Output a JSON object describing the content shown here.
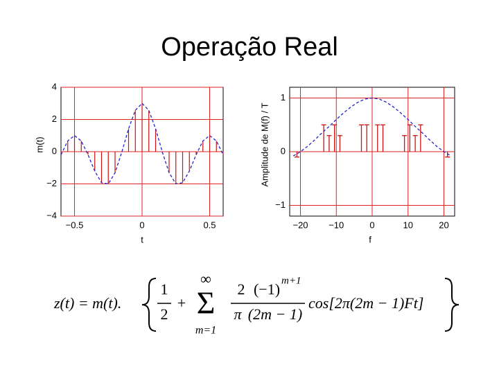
{
  "title": "Operação Real",
  "chart_data": [
    {
      "type": "line",
      "ylabel": "m(t)",
      "xlabel": "t",
      "xlim": [
        -0.6,
        0.6
      ],
      "ylim": [
        -4,
        4
      ],
      "xticks": [
        {
          "value": -0.5,
          "label": "−0.5"
        },
        0,
        0.5
      ],
      "yticks": [
        {
          "value": -4,
          "label": "−4"
        },
        {
          "value": -2,
          "label": "−2"
        },
        0,
        2,
        4
      ],
      "grid": true,
      "grid_color": "#dd2222",
      "line": {
        "color": "#2222cc",
        "dashed": true,
        "x": [
          -0.6,
          -0.55,
          -0.5,
          -0.45,
          -0.4,
          -0.35,
          -0.3,
          -0.25,
          -0.2,
          -0.15,
          -0.1,
          -0.05,
          0,
          0.05,
          0.1,
          0.15,
          0.2,
          0.25,
          0.3,
          0.35,
          0.4,
          0.45,
          0.5,
          0.55,
          0.6
        ],
        "values": [
          -0.191,
          0.667,
          1,
          0.667,
          -0.191,
          -1.206,
          -1.927,
          -2,
          -1.309,
          -0.03,
          1.427,
          2.569,
          3,
          2.569,
          1.427,
          -0.03,
          -1.309,
          -2,
          -1.927,
          -1.206,
          -0.191,
          0.667,
          1,
          0.667,
          -0.191
        ]
      },
      "samples": true,
      "sample_color": "#cc1111"
    },
    {
      "type": "line",
      "ylabel": "Amplitude de M(f) / T",
      "xlabel": "f",
      "xlim": [
        -23,
        23
      ],
      "ylim": [
        -1.2,
        1.2
      ],
      "xticks": [
        {
          "value": -20,
          "label": "−20"
        },
        {
          "value": -10,
          "label": "−10"
        },
        0,
        10,
        20
      ],
      "yticks": [
        {
          "value": -1,
          "label": "−1"
        },
        0,
        1
      ],
      "grid": true,
      "grid_color": "#dd2222",
      "line": {
        "color": "#2222cc",
        "dashed": true,
        "x": [
          -22,
          -20,
          -18,
          -16,
          -14,
          -12,
          -10,
          -8,
          -6,
          -4,
          -2,
          0,
          2,
          4,
          6,
          8,
          10,
          12,
          14,
          16,
          18,
          20,
          22
        ],
        "values": [
          -0.08,
          0,
          0.1,
          0.22,
          0.35,
          0.47,
          0.6,
          0.72,
          0.83,
          0.92,
          0.98,
          1,
          0.98,
          0.92,
          0.83,
          0.72,
          0.6,
          0.47,
          0.35,
          0.22,
          0.1,
          0,
          -0.08
        ]
      },
      "stems": {
        "color": "#cc1111",
        "x": [
          -21,
          -13.5,
          -12,
          -10.5,
          -9,
          -3,
          -1.5,
          1.5,
          3,
          9,
          10.5,
          12,
          13.5,
          21
        ],
        "values": [
          -0.1,
          0.5,
          0.3,
          0.5,
          0.3,
          0.5,
          0.5,
          0.5,
          0.5,
          0.3,
          0.5,
          0.3,
          0.5,
          -0.1
        ]
      }
    }
  ],
  "formula": {
    "lhs": "z(t) = m(t).",
    "one": "1",
    "two": "2",
    "plus": "+",
    "inf": "∞",
    "sigma": "Σ",
    "sub": "m=1",
    "num_a": "2",
    "num_b": "(−1)",
    "num_exp": "m+1",
    "den_a": "π",
    "den_b": "(2m − 1)",
    "cos": "cos[2π(2m − 1)Ft]"
  }
}
